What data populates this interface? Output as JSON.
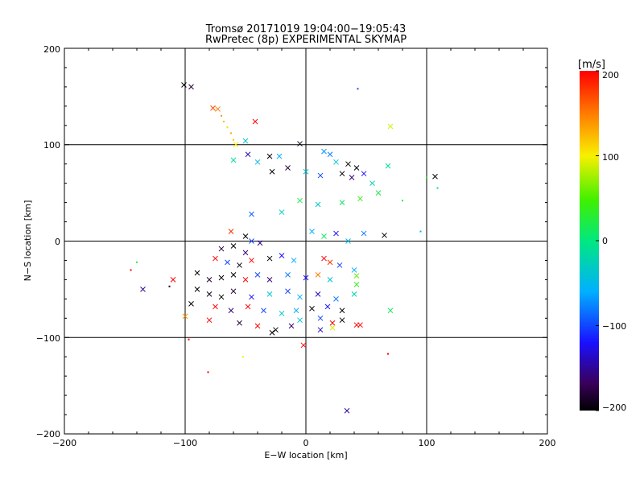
{
  "chart_data": {
    "type": "scatter",
    "title": "Tromsø 20171019 19:04:00−19:05:43",
    "subtitle": "RwPretec (8p) EXPERIMENTAL SKYMAP",
    "xlabel": "E−W location [km]",
    "ylabel": "N−S location [km]",
    "xlim": [
      -200,
      200
    ],
    "ylim": [
      -200,
      200
    ],
    "xticks": [
      "−200",
      "−100",
      "0",
      "100",
      "200"
    ],
    "yticks": [
      "−200",
      "−100",
      "0",
      "100",
      "200"
    ],
    "grid": true,
    "grid_lines": [
      -100,
      0,
      100
    ],
    "colorbar": {
      "label": "[m/s]",
      "range": [
        -200,
        200
      ],
      "ticks": [
        "200",
        "100",
        "0",
        "−100",
        "−200"
      ],
      "tick_values": [
        200,
        100,
        0,
        -100,
        -200
      ]
    },
    "points_note": "color encodes velocity in m/s; x marks and dots",
    "points": [
      {
        "x": -101,
        "y": 162,
        "v": -200,
        "m": "x"
      },
      {
        "x": -95,
        "y": 160,
        "v": -180,
        "m": "x"
      },
      {
        "x": -77,
        "y": 138,
        "v": 170,
        "m": "x"
      },
      {
        "x": -73,
        "y": 137,
        "v": 150,
        "m": "x"
      },
      {
        "x": -70,
        "y": 130,
        "v": 140,
        "m": "."
      },
      {
        "x": -68,
        "y": 124,
        "v": 120,
        "m": "."
      },
      {
        "x": -65,
        "y": 118,
        "v": 110,
        "m": "."
      },
      {
        "x": -62,
        "y": 112,
        "v": 130,
        "m": "."
      },
      {
        "x": -60,
        "y": 105,
        "v": 120,
        "m": "."
      },
      {
        "x": -58,
        "y": 100,
        "v": 100,
        "m": "x"
      },
      {
        "x": -42,
        "y": 124,
        "v": 200,
        "m": "x"
      },
      {
        "x": 43,
        "y": 158,
        "v": -100,
        "m": "."
      },
      {
        "x": 70,
        "y": 119,
        "v": 90,
        "m": "x"
      },
      {
        "x": -50,
        "y": 104,
        "v": -40,
        "m": "x"
      },
      {
        "x": -48,
        "y": 90,
        "v": -140,
        "m": "x"
      },
      {
        "x": -60,
        "y": 84,
        "v": -10,
        "m": "x"
      },
      {
        "x": -30,
        "y": 88,
        "v": -200,
        "m": "x"
      },
      {
        "x": -22,
        "y": 88,
        "v": -60,
        "m": "x"
      },
      {
        "x": -5,
        "y": 101,
        "v": -190,
        "m": "x"
      },
      {
        "x": 15,
        "y": 93,
        "v": -70,
        "m": "x"
      },
      {
        "x": 20,
        "y": 90,
        "v": -80,
        "m": "x"
      },
      {
        "x": 25,
        "y": 82,
        "v": -40,
        "m": "x"
      },
      {
        "x": 35,
        "y": 80,
        "v": -200,
        "m": "x"
      },
      {
        "x": 42,
        "y": 76,
        "v": -200,
        "m": "x"
      },
      {
        "x": 48,
        "y": 70,
        "v": -120,
        "m": "x"
      },
      {
        "x": 68,
        "y": 78,
        "v": -10,
        "m": "x"
      },
      {
        "x": 107,
        "y": 67,
        "v": -200,
        "m": "x"
      },
      {
        "x": 100,
        "y": 66,
        "v": 30,
        "m": "."
      },
      {
        "x": 109,
        "y": 55,
        "v": -10,
        "m": "."
      },
      {
        "x": -40,
        "y": 82,
        "v": -50,
        "m": "x"
      },
      {
        "x": -28,
        "y": 72,
        "v": -200,
        "m": "x"
      },
      {
        "x": -15,
        "y": 76,
        "v": -180,
        "m": "x"
      },
      {
        "x": 0,
        "y": 72,
        "v": -40,
        "m": "x"
      },
      {
        "x": 12,
        "y": 68,
        "v": -100,
        "m": "x"
      },
      {
        "x": 30,
        "y": 70,
        "v": -200,
        "m": "x"
      },
      {
        "x": 38,
        "y": 66,
        "v": -160,
        "m": "x"
      },
      {
        "x": 55,
        "y": 60,
        "v": -20,
        "m": "x"
      },
      {
        "x": 60,
        "y": 50,
        "v": 20,
        "m": "x"
      },
      {
        "x": 45,
        "y": 44,
        "v": 40,
        "m": "x"
      },
      {
        "x": 30,
        "y": 40,
        "v": 10,
        "m": "x"
      },
      {
        "x": 10,
        "y": 38,
        "v": -40,
        "m": "x"
      },
      {
        "x": -5,
        "y": 42,
        "v": 20,
        "m": "x"
      },
      {
        "x": -20,
        "y": 30,
        "v": -30,
        "m": "x"
      },
      {
        "x": -45,
        "y": 28,
        "v": -90,
        "m": "x"
      },
      {
        "x": -62,
        "y": 10,
        "v": 180,
        "m": "x"
      },
      {
        "x": -50,
        "y": 5,
        "v": -200,
        "m": "x"
      },
      {
        "x": -45,
        "y": 0,
        "v": -100,
        "m": "x"
      },
      {
        "x": -38,
        "y": -2,
        "v": -150,
        "m": "x"
      },
      {
        "x": 5,
        "y": 10,
        "v": -60,
        "m": "x"
      },
      {
        "x": 15,
        "y": 5,
        "v": 10,
        "m": "x"
      },
      {
        "x": 25,
        "y": 8,
        "v": -120,
        "m": "x"
      },
      {
        "x": 35,
        "y": 0,
        "v": -50,
        "m": "x"
      },
      {
        "x": 48,
        "y": 8,
        "v": -80,
        "m": "x"
      },
      {
        "x": 65,
        "y": 6,
        "v": -200,
        "m": "x"
      },
      {
        "x": -60,
        "y": -5,
        "v": -200,
        "m": "x"
      },
      {
        "x": -70,
        "y": -8,
        "v": -180,
        "m": "x"
      },
      {
        "x": -50,
        "y": -12,
        "v": -160,
        "m": "x"
      },
      {
        "x": -75,
        "y": -18,
        "v": 200,
        "m": "x"
      },
      {
        "x": -65,
        "y": -22,
        "v": -100,
        "m": "x"
      },
      {
        "x": -55,
        "y": -25,
        "v": -200,
        "m": "x"
      },
      {
        "x": -45,
        "y": -20,
        "v": 200,
        "m": "x"
      },
      {
        "x": -30,
        "y": -18,
        "v": -200,
        "m": "x"
      },
      {
        "x": -20,
        "y": -15,
        "v": -120,
        "m": "x"
      },
      {
        "x": -10,
        "y": -20,
        "v": -60,
        "m": "x"
      },
      {
        "x": 15,
        "y": -18,
        "v": 200,
        "m": "x"
      },
      {
        "x": 20,
        "y": -22,
        "v": 180,
        "m": "x"
      },
      {
        "x": 28,
        "y": -25,
        "v": -100,
        "m": "x"
      },
      {
        "x": 40,
        "y": -30,
        "v": -60,
        "m": "x"
      },
      {
        "x": -90,
        "y": -33,
        "v": -200,
        "m": "x"
      },
      {
        "x": -80,
        "y": -40,
        "v": -180,
        "m": "x"
      },
      {
        "x": -70,
        "y": -38,
        "v": -200,
        "m": "x"
      },
      {
        "x": -60,
        "y": -35,
        "v": -200,
        "m": "x"
      },
      {
        "x": -50,
        "y": -40,
        "v": 200,
        "m": "x"
      },
      {
        "x": -40,
        "y": -35,
        "v": -100,
        "m": "x"
      },
      {
        "x": -30,
        "y": -40,
        "v": -160,
        "m": "x"
      },
      {
        "x": -15,
        "y": -35,
        "v": -80,
        "m": "x"
      },
      {
        "x": 0,
        "y": -38,
        "v": -120,
        "m": "x"
      },
      {
        "x": 10,
        "y": -35,
        "v": 150,
        "m": "x"
      },
      {
        "x": 20,
        "y": -40,
        "v": -40,
        "m": "x"
      },
      {
        "x": 42,
        "y": -36,
        "v": 60,
        "m": "x"
      },
      {
        "x": 42,
        "y": -45,
        "v": 40,
        "m": "x"
      },
      {
        "x": -110,
        "y": -40,
        "v": 200,
        "m": "x"
      },
      {
        "x": -113,
        "y": -47,
        "v": -190,
        "m": "."
      },
      {
        "x": -90,
        "y": -50,
        "v": -200,
        "m": "x"
      },
      {
        "x": -80,
        "y": -55,
        "v": -190,
        "m": "x"
      },
      {
        "x": -70,
        "y": -58,
        "v": -200,
        "m": "x"
      },
      {
        "x": -60,
        "y": -52,
        "v": -180,
        "m": "x"
      },
      {
        "x": -45,
        "y": -58,
        "v": -120,
        "m": "x"
      },
      {
        "x": -30,
        "y": -55,
        "v": -40,
        "m": "x"
      },
      {
        "x": -15,
        "y": -52,
        "v": -100,
        "m": "x"
      },
      {
        "x": -5,
        "y": -58,
        "v": -60,
        "m": "x"
      },
      {
        "x": 10,
        "y": -55,
        "v": -140,
        "m": "x"
      },
      {
        "x": 25,
        "y": -60,
        "v": -80,
        "m": "x"
      },
      {
        "x": 40,
        "y": -55,
        "v": -20,
        "m": "x"
      },
      {
        "x": -135,
        "y": -50,
        "v": -150,
        "m": "x"
      },
      {
        "x": -95,
        "y": -65,
        "v": -200,
        "m": "x"
      },
      {
        "x": -75,
        "y": -68,
        "v": 200,
        "m": "x"
      },
      {
        "x": -62,
        "y": -72,
        "v": -160,
        "m": "x"
      },
      {
        "x": -48,
        "y": -68,
        "v": 200,
        "m": "x"
      },
      {
        "x": -35,
        "y": -72,
        "v": -100,
        "m": "x"
      },
      {
        "x": -20,
        "y": -75,
        "v": -40,
        "m": "x"
      },
      {
        "x": -8,
        "y": -72,
        "v": -60,
        "m": "x"
      },
      {
        "x": 5,
        "y": -70,
        "v": -200,
        "m": "x"
      },
      {
        "x": 18,
        "y": -68,
        "v": -120,
        "m": "x"
      },
      {
        "x": 30,
        "y": -72,
        "v": -200,
        "m": "x"
      },
      {
        "x": 70,
        "y": -72,
        "v": 10,
        "m": "x"
      },
      {
        "x": -100,
        "y": -78,
        "v": 140,
        "m": "x"
      },
      {
        "x": -80,
        "y": -82,
        "v": 200,
        "m": "x"
      },
      {
        "x": -55,
        "y": -85,
        "v": -180,
        "m": "x"
      },
      {
        "x": -40,
        "y": -88,
        "v": 200,
        "m": "x"
      },
      {
        "x": -25,
        "y": -92,
        "v": -200,
        "m": "x"
      },
      {
        "x": -12,
        "y": -88,
        "v": -160,
        "m": "x"
      },
      {
        "x": -5,
        "y": -82,
        "v": -40,
        "m": "x"
      },
      {
        "x": 12,
        "y": -80,
        "v": -100,
        "m": "x"
      },
      {
        "x": 22,
        "y": -85,
        "v": 200,
        "m": "x"
      },
      {
        "x": 30,
        "y": -82,
        "v": -200,
        "m": "x"
      },
      {
        "x": 45,
        "y": -87,
        "v": 200,
        "m": "x"
      },
      {
        "x": 42,
        "y": -87,
        "v": 200,
        "m": "x"
      },
      {
        "x": 22,
        "y": -90,
        "v": 90,
        "m": "x"
      },
      {
        "x": 12,
        "y": -92,
        "v": -140,
        "m": "x"
      },
      {
        "x": -28,
        "y": -95,
        "v": -200,
        "m": "x"
      },
      {
        "x": -2,
        "y": -108,
        "v": 200,
        "m": "x"
      },
      {
        "x": -97,
        "y": -102,
        "v": 200,
        "m": "."
      },
      {
        "x": -52,
        "y": -120,
        "v": 100,
        "m": "."
      },
      {
        "x": 68,
        "y": -117,
        "v": 200,
        "m": "."
      },
      {
        "x": -81,
        "y": -136,
        "v": 200,
        "m": "."
      },
      {
        "x": 34,
        "y": -176,
        "v": -150,
        "m": "x"
      },
      {
        "x": -145,
        "y": -30,
        "v": 200,
        "m": "."
      },
      {
        "x": -140,
        "y": -22,
        "v": 30,
        "m": "."
      },
      {
        "x": 95,
        "y": 10,
        "v": -50,
        "m": "."
      },
      {
        "x": 80,
        "y": 42,
        "v": 20,
        "m": "."
      }
    ]
  }
}
